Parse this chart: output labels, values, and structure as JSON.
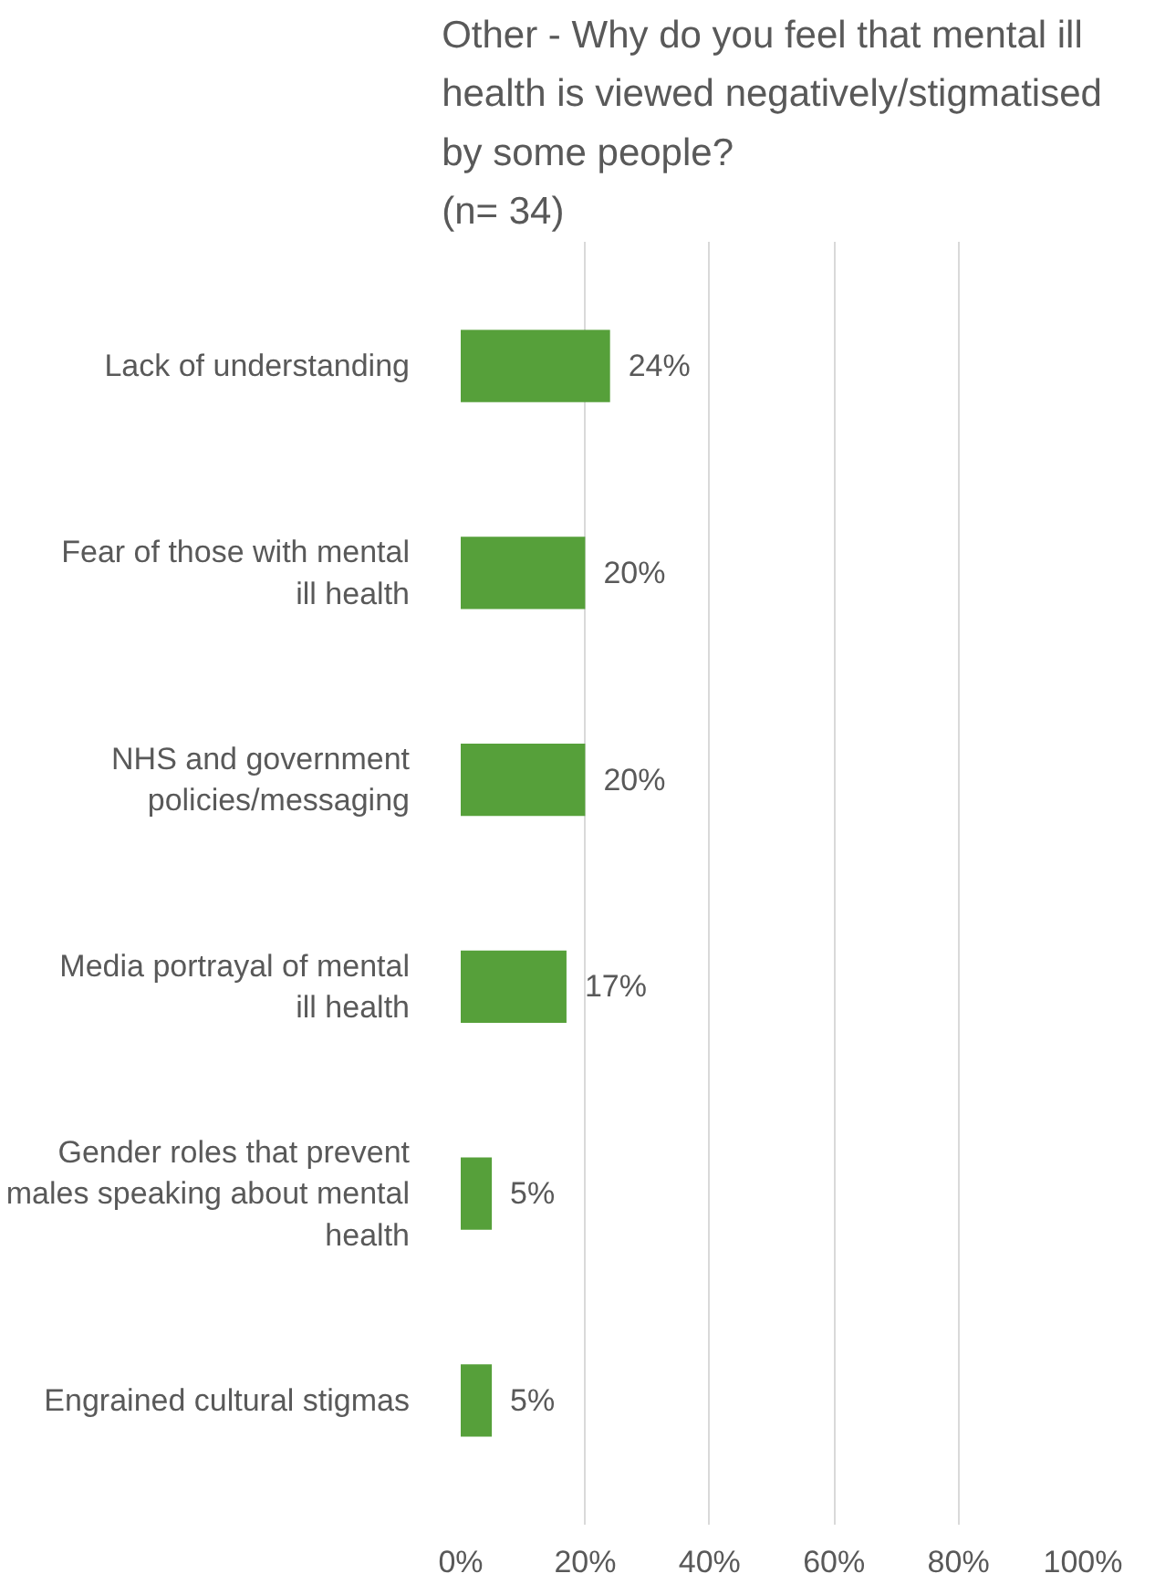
{
  "chart_data": {
    "type": "bar",
    "orientation": "horizontal",
    "title": "Other - Why do you feel that mental ill health is viewed negatively/stigmatised by some people?",
    "subtitle": "(n= 34)",
    "categories": [
      "Lack of understanding",
      "Fear of those with mental ill health",
      "NHS and government policies/messaging",
      "Media portrayal of mental ill health",
      "Gender roles that prevent males speaking about mental health",
      "Engrained cultural stigmas"
    ],
    "values": [
      24,
      20,
      20,
      17,
      5,
      5
    ],
    "value_labels": [
      "24%",
      "20%",
      "20%",
      "17%",
      "5%",
      "5%"
    ],
    "color": "#56a03a",
    "xlim": [
      0,
      100
    ],
    "xticks": [
      {
        "value": 0,
        "label": "0%"
      },
      {
        "value": 20,
        "label": "20%"
      },
      {
        "value": 40,
        "label": "40%"
      },
      {
        "value": 60,
        "label": "60%"
      },
      {
        "value": 80,
        "label": "80%"
      },
      {
        "value": 100,
        "label": "100%"
      }
    ],
    "grid": "x"
  }
}
